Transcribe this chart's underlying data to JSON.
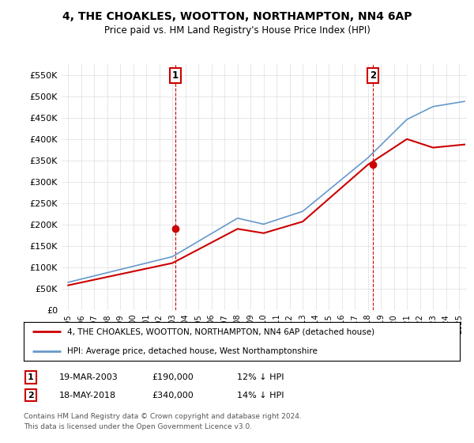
{
  "title": "4, THE CHOAKLES, WOOTTON, NORTHAMPTON, NN4 6AP",
  "subtitle": "Price paid vs. HM Land Registry's House Price Index (HPI)",
  "yticks": [
    0,
    50000,
    100000,
    150000,
    200000,
    250000,
    300000,
    350000,
    400000,
    450000,
    500000,
    550000
  ],
  "ylim": [
    0,
    575000
  ],
  "sale1_year": 2003.21,
  "sale1_price": 190000,
  "sale2_year": 2018.37,
  "sale2_price": 340000,
  "legend_house": "4, THE CHOAKLES, WOOTTON, NORTHAMPTON, NN4 6AP (detached house)",
  "legend_hpi": "HPI: Average price, detached house, West Northamptonshire",
  "table_row1": [
    "1",
    "19-MAR-2003",
    "£190,000",
    "12% ↓ HPI"
  ],
  "table_row2": [
    "2",
    "18-MAY-2018",
    "£340,000",
    "14% ↓ HPI"
  ],
  "footnote1": "Contains HM Land Registry data © Crown copyright and database right 2024.",
  "footnote2": "This data is licensed under the Open Government Licence v3.0.",
  "house_color": "#cc0000",
  "hpi_color": "#6699cc",
  "vline_color": "#cc0000",
  "background_color": "#ffffff",
  "grid_color": "#dddddd"
}
